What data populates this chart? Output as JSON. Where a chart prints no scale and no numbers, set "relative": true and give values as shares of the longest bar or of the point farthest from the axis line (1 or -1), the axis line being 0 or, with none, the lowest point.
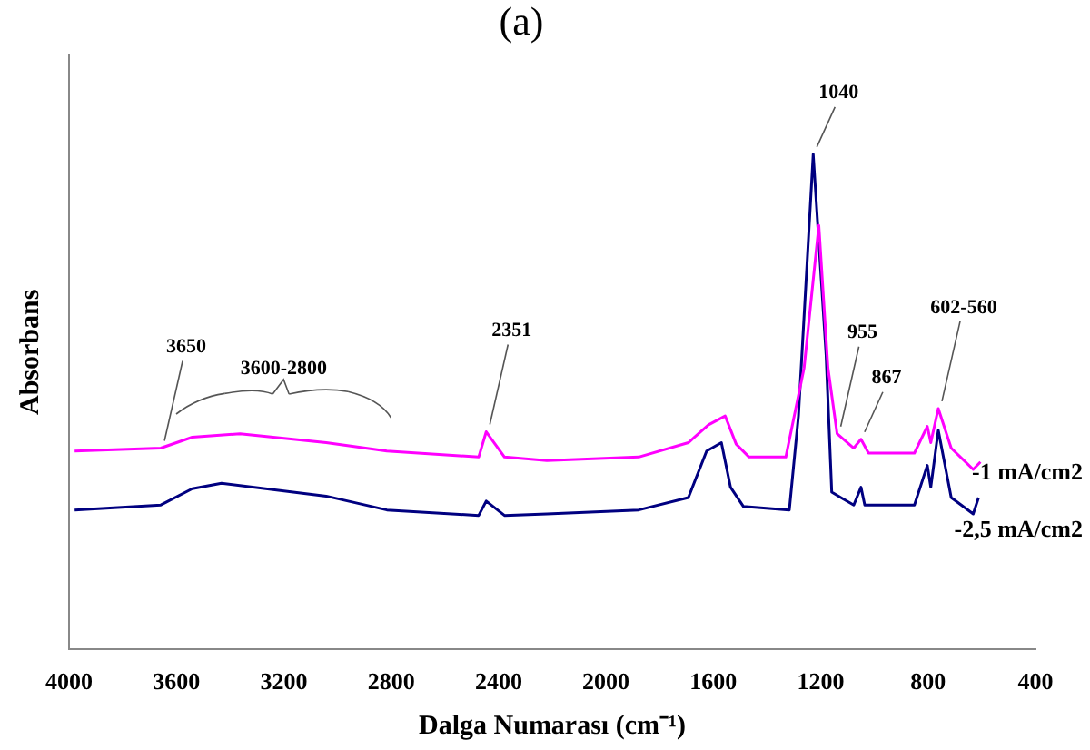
{
  "chart_data": {
    "type": "line",
    "title": "(a)",
    "xlabel": "Dalga Numarası (cm⁻¹)",
    "ylabel": "Absorbans",
    "relative": true,
    "xlim": [
      4000,
      400
    ],
    "xticks": [
      4000,
      3600,
      3200,
      2800,
      2400,
      2000,
      1600,
      1200,
      800,
      400
    ],
    "grid": false,
    "legend": false,
    "marker": "none",
    "line_style": "solid",
    "series": [
      {
        "name": "-1 mA/cm2",
        "color": "#ff00ff",
        "x": [
          3979,
          3658,
          3541,
          3363,
          3042,
          2816,
          2474,
          2446,
          2378,
          2220,
          1878,
          1693,
          1618,
          1556,
          1515,
          1467,
          1330,
          1262,
          1207,
          1173,
          1139,
          1077,
          1050,
          1022,
          851,
          803,
          790,
          762,
          714,
          632,
          605
        ],
        "values": [
          0.4,
          0.406,
          0.428,
          0.435,
          0.417,
          0.4,
          0.388,
          0.439,
          0.388,
          0.381,
          0.388,
          0.417,
          0.453,
          0.471,
          0.414,
          0.388,
          0.388,
          0.568,
          0.856,
          0.568,
          0.435,
          0.406,
          0.424,
          0.396,
          0.396,
          0.45,
          0.417,
          0.486,
          0.406,
          0.363,
          0.378
        ]
      },
      {
        "name": "-2,5 mA/cm2",
        "color": "#000080",
        "x": [
          3979,
          3658,
          3541,
          3432,
          3042,
          2816,
          2474,
          2446,
          2378,
          2220,
          1878,
          1693,
          1625,
          1570,
          1536,
          1488,
          1317,
          1283,
          1228,
          1180,
          1159,
          1125,
          1077,
          1050,
          1036,
          851,
          803,
          790,
          762,
          714,
          632,
          612
        ],
        "values": [
          0.281,
          0.291,
          0.324,
          0.335,
          0.309,
          0.281,
          0.27,
          0.299,
          0.27,
          0.273,
          0.281,
          0.306,
          0.4,
          0.417,
          0.327,
          0.288,
          0.281,
          0.471,
          1,
          0.594,
          0.317,
          0.306,
          0.291,
          0.327,
          0.291,
          0.291,
          0.371,
          0.327,
          0.442,
          0.306,
          0.273,
          0.306
        ]
      }
    ],
    "annotations": [
      {
        "text": "3650",
        "x": 3658,
        "y": 0.406
      },
      {
        "text": "3600-2800",
        "x": 3200,
        "y": 0.435
      },
      {
        "text": "2351",
        "x": 2446,
        "y": 0.439
      },
      {
        "text": "1040",
        "x": 1228,
        "y": 1
      },
      {
        "text": "955",
        "x": 1139,
        "y": 0.435
      },
      {
        "text": "867",
        "x": 1050,
        "y": 0.424
      },
      {
        "text": "602-560",
        "x": 762,
        "y": 0.486
      }
    ]
  }
}
